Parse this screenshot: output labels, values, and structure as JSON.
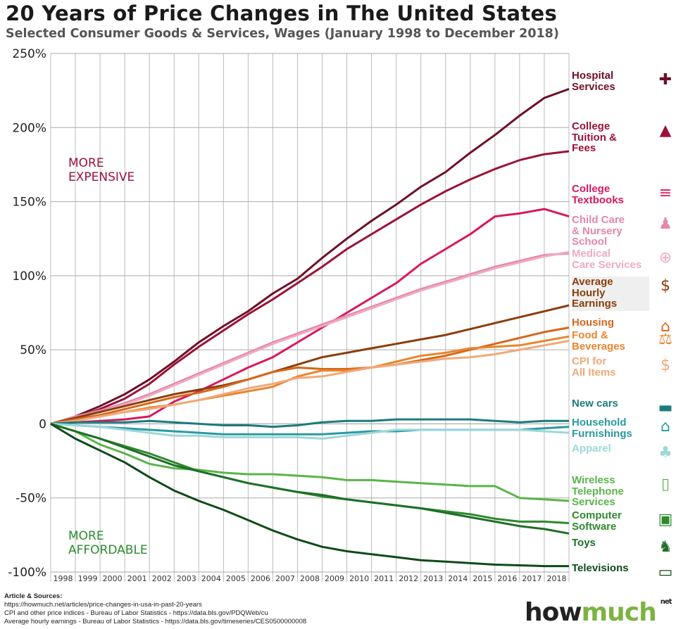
{
  "header": {
    "title": "20 Years of Price Changes in The United States",
    "subtitle": "Selected Consumer Goods & Services, Wages (January 1998 to December 2018)"
  },
  "annotations": {
    "expensive": "MORE\nEXPENSIVE",
    "affordable": "MORE\nAFFORDABLE"
  },
  "sources": {
    "heading": "Article & Sources:",
    "lines": [
      "https://howmuch.net/articles/price-changes-in-usa-in-past-20-years",
      "CPI and other price indices - Bureau of Labor Statistics - https://data.bls.gov/PDQWeb/cu",
      "Average hourly earnings - Bureau of Labor Statistics - https://data.bls.gov/timeseries/CES0500000008"
    ]
  },
  "logo": {
    "how": "how",
    "much": "much",
    "net": "net"
  },
  "chart_data": {
    "type": "line",
    "title": "20 Years of Price Changes in The United States",
    "subtitle": "Selected Consumer Goods & Services, Wages (January 1998 to December 2018)",
    "xlabel": "",
    "ylabel": "",
    "x": [
      1998,
      1999,
      2000,
      2001,
      2002,
      2003,
      2004,
      2005,
      2006,
      2007,
      2008,
      2009,
      2010,
      2011,
      2012,
      2013,
      2014,
      2015,
      2016,
      2017,
      2018,
      2019
    ],
    "x_tick_labels": [
      "1998",
      "1999",
      "2000",
      "2001",
      "2002",
      "2003",
      "2004",
      "2005",
      "2006",
      "2007",
      "2008",
      "2009",
      "2010",
      "2011",
      "2012",
      "2013",
      "2014",
      "2015",
      "2016",
      "2017",
      "2018"
    ],
    "xlim": [
      1998,
      2019
    ],
    "ylim": [
      -100,
      250
    ],
    "y_ticks": [
      250,
      200,
      150,
      100,
      50,
      0,
      -50,
      -100
    ],
    "y_tick_labels": [
      "250%",
      "200%",
      "150%",
      "100%",
      "50%",
      "0",
      "-50%",
      "-100%"
    ],
    "grid": true,
    "legend": "right-end labels",
    "series": [
      {
        "name": "Hospital Services",
        "color": "#6e1026",
        "icon": "hospital-icon",
        "values": [
          0,
          5,
          12,
          20,
          30,
          42,
          55,
          66,
          76,
          88,
          98,
          112,
          125,
          137,
          148,
          160,
          170,
          183,
          195,
          208,
          220,
          226
        ]
      },
      {
        "name": "College Tuition & Fees",
        "color": "#9b1238",
        "icon": "graduation-cap-icon",
        "values": [
          0,
          4,
          10,
          17,
          27,
          40,
          52,
          63,
          74,
          84,
          95,
          106,
          118,
          128,
          138,
          148,
          157,
          165,
          172,
          178,
          182,
          184
        ]
      },
      {
        "name": "College Textbooks",
        "color": "#d8185e",
        "icon": "books-icon",
        "values": [
          0,
          1,
          2,
          3,
          5,
          15,
          22,
          30,
          38,
          45,
          55,
          65,
          75,
          85,
          95,
          108,
          118,
          128,
          140,
          142,
          145,
          140
        ]
      },
      {
        "name": "Child Care & Nursery School",
        "color": "#e487ab",
        "icon": "family-icon",
        "values": [
          0,
          5,
          9,
          14,
          20,
          27,
          34,
          41,
          48,
          55,
          61,
          67,
          73,
          79,
          85,
          91,
          96,
          101,
          106,
          110,
          114,
          115
        ]
      },
      {
        "name": "Medical Care Services",
        "color": "#f0aac4",
        "icon": "medical-hand-icon",
        "values": [
          0,
          4,
          8,
          13,
          19,
          26,
          33,
          40,
          47,
          54,
          60,
          66,
          72,
          78,
          84,
          90,
          95,
          100,
          105,
          109,
          113,
          116
        ]
      },
      {
        "name": "Average Hourly Earnings",
        "color": "#8a3e0a",
        "icon": "clock-dollar-icon",
        "values": [
          0,
          4,
          8,
          12,
          16,
          20,
          23,
          26,
          30,
          35,
          40,
          45,
          48,
          51,
          54,
          57,
          60,
          64,
          68,
          72,
          76,
          80
        ]
      },
      {
        "name": "Housing",
        "color": "#d8661a",
        "icon": "house-icon",
        "values": [
          0,
          3,
          6,
          10,
          14,
          18,
          21,
          25,
          30,
          35,
          38,
          37,
          37,
          38,
          40,
          43,
          46,
          50,
          54,
          58,
          62,
          65
        ]
      },
      {
        "name": "Food & Beverages",
        "color": "#e9862e",
        "icon": "food-icon",
        "values": [
          0,
          2,
          5,
          8,
          11,
          13,
          16,
          19,
          22,
          25,
          32,
          36,
          36,
          38,
          42,
          46,
          48,
          51,
          52,
          53,
          56,
          59
        ]
      },
      {
        "name": "CPI for All Items",
        "color": "#f0a97a",
        "icon": "price-tag-icon",
        "values": [
          0,
          2,
          5,
          8,
          10,
          13,
          16,
          20,
          24,
          27,
          31,
          32,
          35,
          38,
          40,
          42,
          44,
          45,
          47,
          50,
          53,
          56
        ]
      },
      {
        "name": "New cars",
        "color": "#1b7b7e",
        "icon": "car-icon",
        "values": [
          0,
          1,
          1,
          1,
          2,
          1,
          0,
          -1,
          -1,
          -2,
          -1,
          1,
          2,
          2,
          3,
          3,
          3,
          3,
          2,
          1,
          2,
          2
        ]
      },
      {
        "name": "Household Furnishings",
        "color": "#2a9aa0",
        "icon": "furnished-house-icon",
        "values": [
          0,
          -1,
          -2,
          -3,
          -4,
          -5,
          -6,
          -7,
          -7,
          -7,
          -7,
          -7,
          -6,
          -5,
          -5,
          -4,
          -4,
          -4,
          -4,
          -4,
          -3,
          -2
        ]
      },
      {
        "name": "Apparel",
        "color": "#9dd8d8",
        "icon": "clothes-icon",
        "values": [
          0,
          -1,
          -2,
          -4,
          -6,
          -8,
          -8,
          -9,
          -9,
          -9,
          -9,
          -10,
          -8,
          -6,
          -4,
          -4,
          -4,
          -4,
          -4,
          -4,
          -5,
          -6
        ]
      },
      {
        "name": "Wireless Telephone Services",
        "color": "#5ab44a",
        "icon": "phone-icon",
        "values": [
          0,
          -5,
          -14,
          -20,
          -27,
          -30,
          -31,
          -33,
          -34,
          -34,
          -35,
          -36,
          -38,
          -38,
          -39,
          -40,
          -41,
          -42,
          -42,
          -50,
          -51,
          -52
        ]
      },
      {
        "name": "Computer Software",
        "color": "#2e8a2e",
        "icon": "laptop-icon",
        "values": [
          0,
          -5,
          -10,
          -15,
          -20,
          -26,
          -32,
          -36,
          -40,
          -43,
          -46,
          -49,
          -51,
          -53,
          -55,
          -57,
          -59,
          -61,
          -64,
          -66,
          -66,
          -67
        ]
      },
      {
        "name": "Toys",
        "color": "#1f6e28",
        "icon": "toys-icon",
        "values": [
          0,
          -5,
          -10,
          -16,
          -22,
          -28,
          -32,
          -36,
          -40,
          -43,
          -46,
          -48,
          -51,
          -53,
          -55,
          -57,
          -60,
          -63,
          -66,
          -69,
          -71,
          -74
        ]
      },
      {
        "name": "Televisions",
        "color": "#0f4a1a",
        "icon": "television-icon",
        "values": [
          0,
          -10,
          -18,
          -26,
          -36,
          -45,
          -52,
          -58,
          -65,
          -72,
          -78,
          -83,
          -86,
          -88,
          -90,
          -92,
          -93,
          -94,
          -95,
          -95.5,
          -96,
          -96
        ]
      }
    ]
  }
}
